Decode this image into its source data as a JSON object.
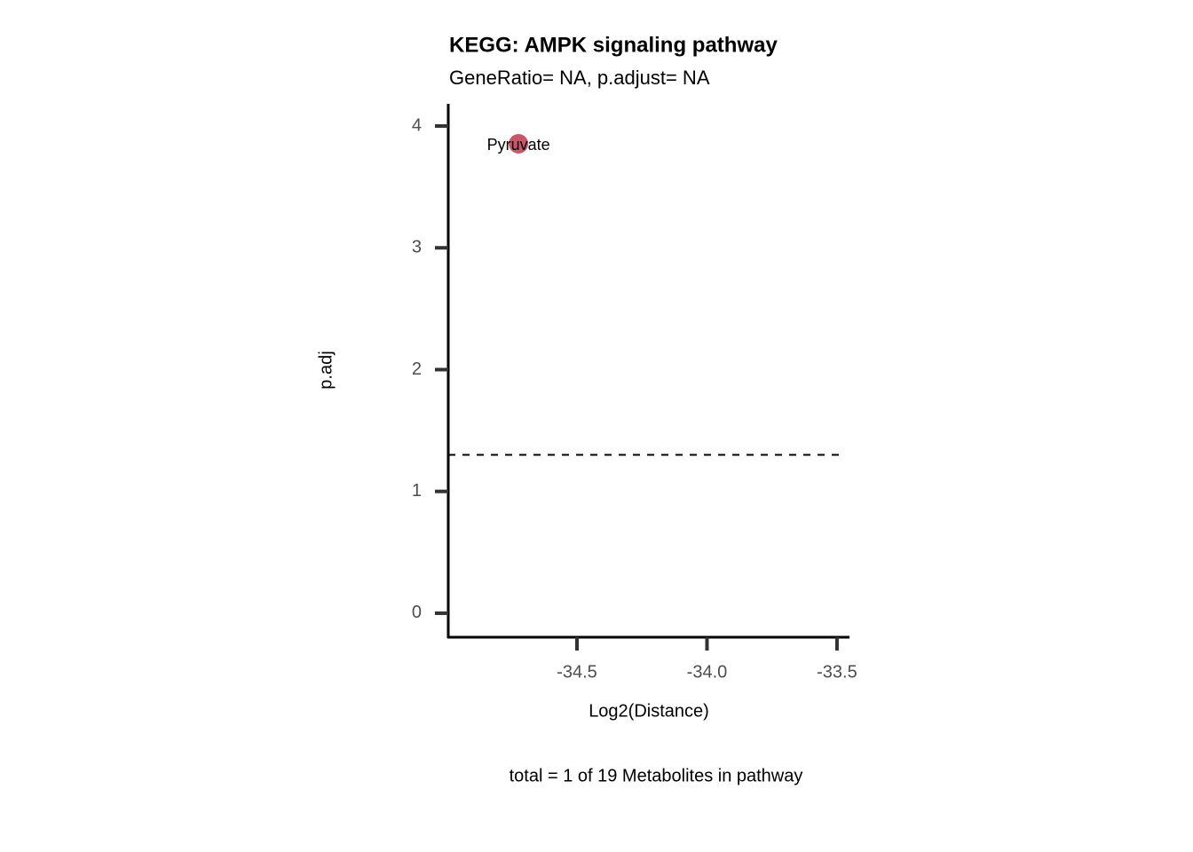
{
  "chart_data": {
    "type": "scatter",
    "title": "KEGG: AMPK signaling pathway",
    "subtitle": "GeneRatio= NA, p.adjust= NA",
    "x_label": "Log2(Distance)",
    "y_label": "p.adj",
    "caption": "total = 1 of 19 Metabolites in pathway",
    "x": [
      -34.725
    ],
    "values": [
      3.854
    ],
    "point_labels": [
      "Pyruvate"
    ],
    "color": "#c8576c",
    "hline": 1.3,
    "xlim": [
      -34.995,
      -33.452
    ],
    "xticks": [
      -34.5,
      {
        "value": -34,
        "label": "-34.0"
      },
      -33.5
    ],
    "ylim": [
      -0.197,
      4.182
    ],
    "yticks": [
      0,
      1,
      2,
      3,
      4
    ]
  }
}
